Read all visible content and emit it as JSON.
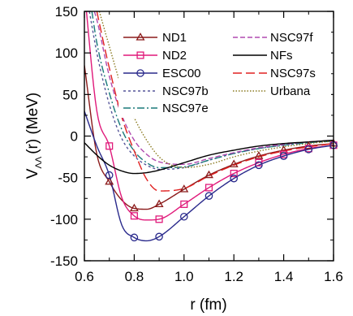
{
  "chart_data": {
    "type": "line",
    "xlabel": "r (fm)",
    "ylabel_main": "V",
    "ylabel_sub": "ΛΛ",
    "ylabel_rest": "(r) (MeV)",
    "xlim": [
      0.6,
      1.6
    ],
    "ylim": [
      -150,
      150
    ],
    "xticks": [
      0.6,
      0.8,
      1.0,
      1.2,
      1.4,
      1.6
    ],
    "xtick_labels": [
      "0.6",
      "0.8",
      "1.0",
      "1.2",
      "1.4",
      "1.6"
    ],
    "yticks": [
      -150,
      -100,
      -50,
      0,
      50,
      100,
      150
    ],
    "ytick_labels": [
      "-150",
      "-100",
      "-50",
      "0",
      "50",
      "100",
      "150"
    ],
    "grid": false,
    "legend_position": "top-right",
    "series": [
      {
        "name": "ND1",
        "color": "#8b1a1a",
        "dash": "solid",
        "marker": "triangle",
        "x": [
          0.6,
          0.65,
          0.7,
          0.75,
          0.8,
          0.85,
          0.9,
          1.0,
          1.1,
          1.2,
          1.3,
          1.4,
          1.5,
          1.6
        ],
        "y": [
          85,
          -22,
          -55,
          -77,
          -87,
          -88,
          -82,
          -64,
          -47,
          -34,
          -24,
          -17,
          -12,
          -9
        ],
        "marker_x": [
          0.7,
          0.8,
          0.9,
          1.0,
          1.1,
          1.2,
          1.3,
          1.4,
          1.5,
          1.6
        ]
      },
      {
        "name": "ND2",
        "color": "#e0197a",
        "dash": "solid",
        "marker": "square",
        "x": [
          0.6,
          0.65,
          0.7,
          0.75,
          0.8,
          0.85,
          0.9,
          1.0,
          1.1,
          1.2,
          1.3,
          1.4,
          1.5,
          1.6
        ],
        "y": [
          175,
          30,
          -12,
          -74,
          -96,
          -101,
          -100,
          -82,
          -62,
          -45,
          -32,
          -22,
          -15,
          -11
        ],
        "marker_x": [
          0.7,
          0.8,
          0.9,
          1.0,
          1.1,
          1.2,
          1.3,
          1.4,
          1.5,
          1.6
        ]
      },
      {
        "name": "ESC00",
        "color": "#2a2a8c",
        "dash": "solid",
        "marker": "circle",
        "x": [
          0.6,
          0.65,
          0.7,
          0.75,
          0.8,
          0.85,
          0.9,
          1.0,
          1.1,
          1.2,
          1.3,
          1.4,
          1.5,
          1.6
        ],
        "y": [
          30,
          -12,
          -47,
          -107,
          -122,
          -126,
          -121,
          -97,
          -72,
          -51,
          -35,
          -24,
          -16,
          -11
        ],
        "marker_x": [
          0.7,
          0.8,
          0.9,
          1.0,
          1.1,
          1.2,
          1.3,
          1.4,
          1.5,
          1.6
        ]
      },
      {
        "name": "NSC97b",
        "color": "#555599",
        "dash": "dot",
        "x": [
          0.62,
          0.65,
          0.7,
          0.75,
          0.8,
          0.85,
          0.9,
          1.0,
          1.1,
          1.2,
          1.3,
          1.4,
          1.5,
          1.6
        ],
        "y": [
          150,
          100,
          38,
          -3,
          -24,
          -35,
          -40,
          -38,
          -29,
          -21,
          -15,
          -11,
          -8,
          -6
        ]
      },
      {
        "name": "NSC97e",
        "color": "#1a7a7a",
        "dash": "dashdot",
        "x": [
          0.63,
          0.65,
          0.7,
          0.75,
          0.8,
          0.85,
          0.9,
          1.0,
          1.1,
          1.2,
          1.3,
          1.4,
          1.5,
          1.6
        ],
        "y": [
          150,
          112,
          52,
          8,
          -18,
          -32,
          -38,
          -37,
          -29,
          -21,
          -15,
          -11,
          -8,
          -6
        ]
      },
      {
        "name": "NSC97f",
        "color": "#b04ab0",
        "dash": "dash",
        "x": [
          0.64,
          0.65,
          0.7,
          0.75,
          0.8,
          0.85,
          0.9,
          1.0,
          1.1,
          1.2,
          1.3,
          1.4,
          1.5,
          1.6
        ],
        "y": [
          150,
          140,
          72,
          25,
          -5,
          -22,
          -31,
          -34,
          -27,
          -20,
          -14,
          -10,
          -7,
          -5
        ]
      },
      {
        "name": "NFs",
        "color": "#000000",
        "dash": "solid",
        "x": [
          0.6,
          0.65,
          0.7,
          0.75,
          0.8,
          0.85,
          0.9,
          1.0,
          1.1,
          1.2,
          1.3,
          1.4,
          1.5,
          1.6
        ],
        "y": [
          -8,
          -23,
          -35,
          -42,
          -45,
          -44,
          -41,
          -32,
          -23,
          -17,
          -12,
          -9,
          -7,
          -5
        ]
      },
      {
        "name": "NSC97s",
        "color": "#e02020",
        "dash": "longdash",
        "x": [
          0.65,
          0.68,
          0.7,
          0.75,
          0.8,
          0.85,
          0.9,
          1.0,
          1.1,
          1.2,
          1.3,
          1.4,
          1.5,
          1.6
        ],
        "y": [
          150,
          108,
          82,
          23,
          -18,
          -52,
          -66,
          -63,
          -48,
          -35,
          -25,
          -18,
          -13,
          -9
        ]
      },
      {
        "name": "Urbana",
        "color": "#8a7a20",
        "dash": "finedot",
        "x": [
          0.66,
          0.7,
          0.75,
          0.8,
          0.85,
          0.9,
          0.95,
          1.0,
          1.1,
          1.2,
          1.3,
          1.4,
          1.5,
          1.6
        ],
        "y": [
          150,
          108,
          58,
          22,
          -5,
          -25,
          -35,
          -38,
          -34,
          -25,
          -18,
          -13,
          -9,
          -6
        ]
      }
    ]
  }
}
